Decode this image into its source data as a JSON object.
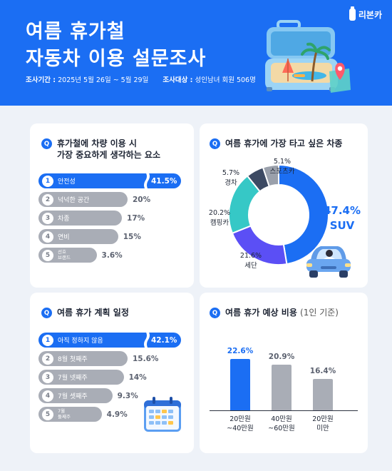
{
  "header": {
    "title_line1": "여름 휴가철",
    "title_line2": "자동차 이용 설문조사",
    "period_label": "조사기간 :",
    "period_value": "2025년 5월 26일 ~ 5월 29일",
    "target_label": "조사대상 :",
    "target_value": "성인남녀 회원 506명",
    "logo_text": "리본카"
  },
  "colors": {
    "accent": "#1b6ef3",
    "gray_bar": "#a9adb6",
    "teal": "#36c8c6",
    "purple": "#5b4ff5",
    "navy": "#3d4a63",
    "light_gray": "#9aa0ab"
  },
  "q1": {
    "badge": "Q",
    "title_line1": "휴가철에 차량 이용 시",
    "title_line2": "가장 중요하게 생각하는 요소",
    "chart_data": {
      "type": "bar",
      "orientation": "horizontal",
      "categories": [
        "안전성",
        "넉넉한 공간",
        "차종",
        "연비",
        "선호 브랜드"
      ],
      "values": [
        41.5,
        20,
        17,
        15,
        3.6
      ],
      "value_labels": [
        "41.5%",
        "20%",
        "17%",
        "15%",
        "3.6%"
      ],
      "ranks": [
        "1",
        "2",
        "3",
        "4",
        "5"
      ],
      "highlight_index": 0,
      "axis_break_on_highlight": true
    }
  },
  "q2": {
    "badge": "Q",
    "title": "여름 휴가에 가장 타고 싶은 차종",
    "chart_data": {
      "type": "pie",
      "style": "donut",
      "categories": [
        "SUV",
        "세단",
        "캠핑카",
        "경차",
        "스포츠카"
      ],
      "values": [
        47.4,
        21.6,
        20.2,
        5.7,
        5.1
      ],
      "value_labels": [
        "47.4%",
        "21.6%",
        "20.2%",
        "5.7%",
        "5.1%"
      ],
      "colors": [
        "#1b6ef3",
        "#5b4ff5",
        "#36c8c6",
        "#3d4a63",
        "#9aa0ab"
      ]
    }
  },
  "q3": {
    "badge": "Q",
    "title": "여름 휴가 계획 일정",
    "chart_data": {
      "type": "bar",
      "orientation": "horizontal",
      "categories": [
        "아직 정하지 않음",
        "8월 첫째주",
        "7월 넷째주",
        "7월 셋째주",
        "7월 둘째주"
      ],
      "values": [
        42.1,
        15.6,
        14,
        9.3,
        4.9
      ],
      "value_labels": [
        "42.1%",
        "15.6%",
        "14%",
        "9.3%",
        "4.9%"
      ],
      "ranks": [
        "1",
        "2",
        "3",
        "4",
        "5"
      ],
      "highlight_index": 0,
      "axis_break_on_highlight": true
    }
  },
  "q4": {
    "badge": "Q",
    "title": "여름 휴가 예상 비용",
    "title_suffix": "(1인 기준)",
    "chart_data": {
      "type": "bar",
      "orientation": "vertical",
      "categories": [
        "20만원 ~40만원",
        "40만원 ~60만원",
        "20만원 미만"
      ],
      "category_lines": [
        [
          "20만원",
          "~40만원"
        ],
        [
          "40만원",
          "~60만원"
        ],
        [
          "20만원",
          "미만"
        ]
      ],
      "values": [
        22.6,
        20.9,
        16.4
      ],
      "value_labels": [
        "22.6%",
        "20.9%",
        "16.4%"
      ],
      "highlight_index": 0
    }
  }
}
